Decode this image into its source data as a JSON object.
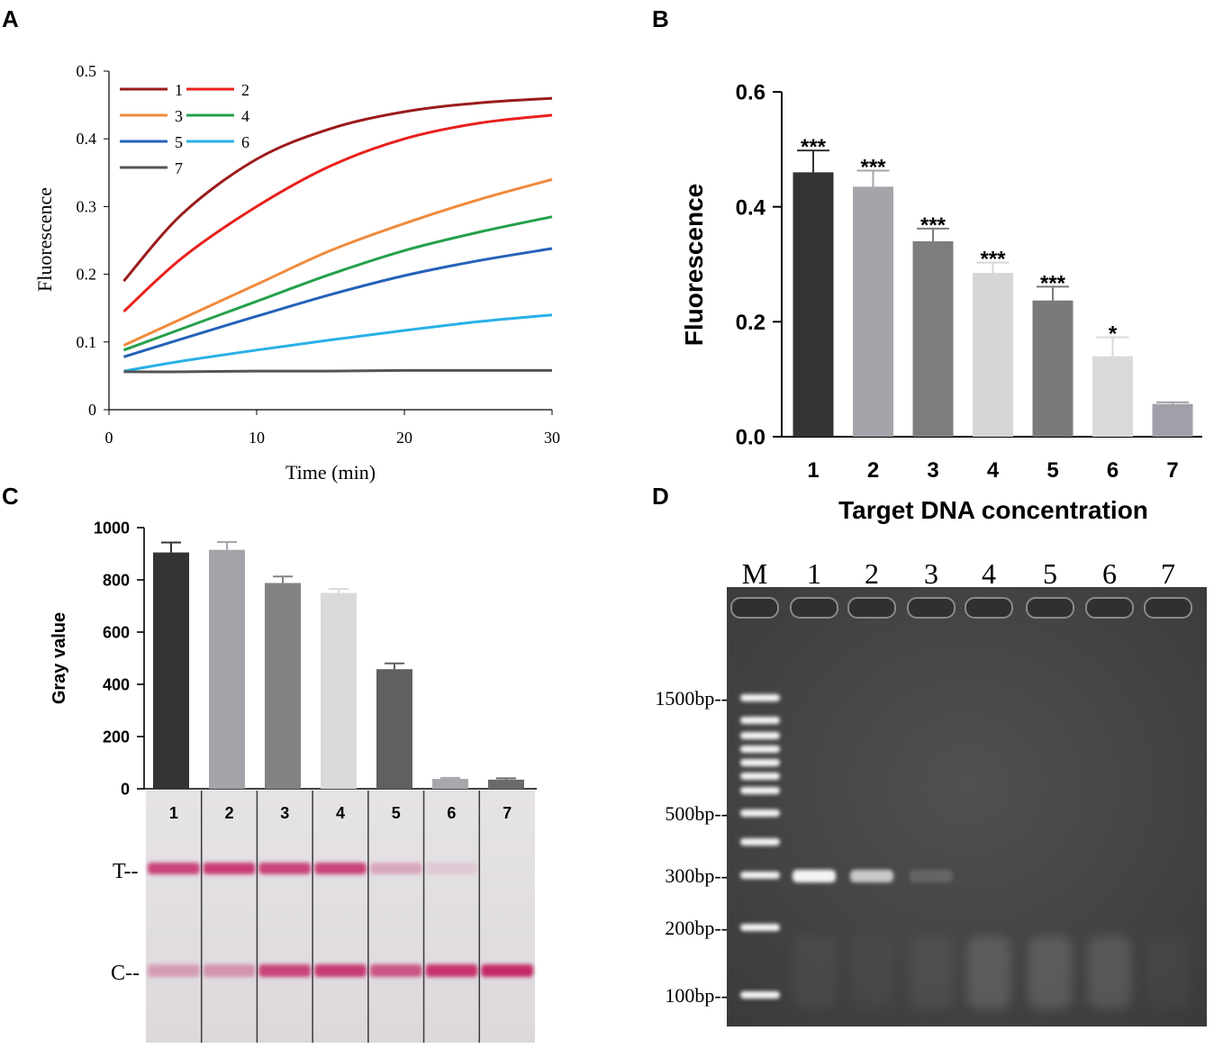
{
  "panels": {
    "A": {
      "letter": "A"
    },
    "B": {
      "letter": "B"
    },
    "C": {
      "letter": "C"
    },
    "D": {
      "letter": "D"
    }
  },
  "chart_data": [
    {
      "id": "A",
      "type": "line",
      "xlabel": "Time (min)",
      "ylabel": "Fluorescence",
      "xlim": [
        0,
        30
      ],
      "ylim": [
        0,
        0.5
      ],
      "xticks": [
        "0",
        "10",
        "20",
        "30"
      ],
      "yticks": [
        "0",
        "0.1",
        "0.2",
        "0.3",
        "0.4",
        "0.5"
      ],
      "legend_position": "top-left",
      "x": [
        1,
        5,
        10,
        15,
        20,
        25,
        30
      ],
      "series": [
        {
          "name": "1",
          "color": "#9b1b1b",
          "values": [
            0.19,
            0.29,
            0.37,
            0.415,
            0.44,
            0.453,
            0.46
          ]
        },
        {
          "name": "2",
          "color": "#e8201c",
          "values": [
            0.145,
            0.225,
            0.3,
            0.36,
            0.4,
            0.423,
            0.435
          ]
        },
        {
          "name": "3",
          "color": "#f08a3c",
          "values": [
            0.095,
            0.135,
            0.185,
            0.235,
            0.275,
            0.31,
            0.34
          ]
        },
        {
          "name": "4",
          "color": "#24a04a",
          "values": [
            0.088,
            0.12,
            0.16,
            0.2,
            0.235,
            0.262,
            0.285
          ]
        },
        {
          "name": "5",
          "color": "#2462b8",
          "values": [
            0.078,
            0.105,
            0.138,
            0.17,
            0.198,
            0.22,
            0.238
          ]
        },
        {
          "name": "6",
          "color": "#29b0e8",
          "values": [
            0.057,
            0.072,
            0.088,
            0.103,
            0.117,
            0.13,
            0.14
          ]
        },
        {
          "name": "7",
          "color": "#555555",
          "values": [
            0.056,
            0.056,
            0.057,
            0.057,
            0.058,
            0.058,
            0.058
          ]
        }
      ]
    },
    {
      "id": "B",
      "type": "bar",
      "xlabel": "Target DNA concentration",
      "ylabel": "Fluorescence",
      "ylim": [
        0,
        0.6
      ],
      "yticks": [
        "0.0",
        "0.2",
        "0.4",
        "0.6"
      ],
      "categories": [
        "1",
        "2",
        "3",
        "4",
        "5",
        "6",
        "7"
      ],
      "values": [
        0.46,
        0.435,
        0.34,
        0.285,
        0.237,
        0.14,
        0.057
      ],
      "errors": [
        0.038,
        0.028,
        0.022,
        0.018,
        0.024,
        0.033,
        0.003
      ],
      "significance": [
        "***",
        "***",
        "***",
        "***",
        "***",
        "*",
        ""
      ],
      "colors": [
        "#333333",
        "#a4a4aa",
        "#7d7d7d",
        "#d6d6d6",
        "#7a7a7a",
        "#d9d9d9",
        "#a0a0a8"
      ]
    },
    {
      "id": "C",
      "type": "bar",
      "xlabel": "",
      "ylabel": "Gray value",
      "ylim": [
        0,
        1000
      ],
      "yticks": [
        "0",
        "200",
        "400",
        "600",
        "800",
        "1000"
      ],
      "categories": [
        "1",
        "2",
        "3",
        "4",
        "5",
        "6",
        "7"
      ],
      "values": [
        905,
        915,
        788,
        750,
        458,
        38,
        35
      ],
      "errors": [
        38,
        30,
        25,
        15,
        22,
        4,
        5
      ],
      "colors": [
        "#343434",
        "#a3a3a9",
        "#838383",
        "#d9d9d9",
        "#606060",
        "#a8a8ac",
        "#6a6a6a"
      ]
    }
  ],
  "strip": {
    "lanes": [
      "1",
      "2",
      "3",
      "4",
      "5",
      "6",
      "7"
    ],
    "t_label": "T--",
    "c_label": "C--",
    "t_intensity": [
      0.85,
      0.9,
      0.85,
      0.85,
      0.3,
      0.12,
      0.0
    ],
    "c_intensity": [
      0.35,
      0.4,
      0.85,
      0.9,
      0.75,
      0.95,
      1.0
    ]
  },
  "gel": {
    "lane_labels": [
      "M",
      "1",
      "2",
      "3",
      "4",
      "5",
      "6",
      "7"
    ],
    "markers": [
      "1500bp--",
      "500bp--",
      "300bp--",
      "200bp--",
      "100bp--"
    ],
    "band_300_intensity": [
      0.95,
      0.7,
      0.15,
      0.0,
      0.0,
      0.0,
      0.0
    ],
    "smear_intensity": [
      0.15,
      0.1,
      0.2,
      0.45,
      0.45,
      0.4,
      0.1
    ]
  }
}
